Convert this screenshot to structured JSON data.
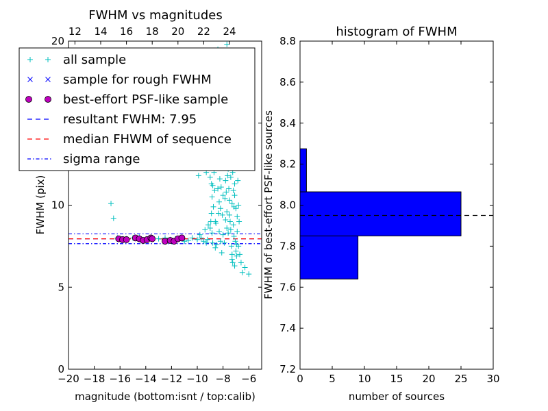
{
  "chart_data": [
    {
      "type": "scatter",
      "title": "FWHM vs magnitudes",
      "xlabel": "magnitude (bottom:isnt / top:calib)",
      "ylabel": "FWHM (pix)",
      "xlim": [
        -20,
        -5
      ],
      "ylim": [
        0,
        20
      ],
      "xticks": [
        -20,
        -18,
        -16,
        -14,
        -12,
        -10,
        -8,
        -6
      ],
      "xtick_labels": [
        "−20",
        "−18",
        "−16",
        "−14",
        "−12",
        "−10",
        "−8",
        "−6"
      ],
      "yticks": [
        0,
        5,
        10,
        15,
        20
      ],
      "ytick_labels": [
        "0",
        "5",
        "10",
        "15",
        "20"
      ],
      "top_axis": {
        "ticks": [
          12,
          14,
          16,
          18,
          20,
          22,
          24
        ],
        "tick_labels": [
          "12",
          "14",
          "16",
          "18",
          "20",
          "22",
          "24"
        ],
        "offset": 31.5
      },
      "legend_position": "top-left",
      "legend": [
        {
          "label": "all sample",
          "marker": "plus",
          "color": "#00BFBF"
        },
        {
          "label": "sample for rough FWHM",
          "marker": "x",
          "color": "#0000FF"
        },
        {
          "label": "best-effort PSF-like sample",
          "marker": "circle",
          "color": "#BF00BF"
        },
        {
          "label": "resultant FWHM: 7.95",
          "marker": "dash",
          "color": "#0000FF"
        },
        {
          "label": "median FHWM of sequence",
          "marker": "dash",
          "color": "#FF0000"
        },
        {
          "label": "sigma range",
          "marker": "dashdot",
          "color": "#0000FF"
        }
      ],
      "hlines": [
        {
          "y": 7.95,
          "color": "#0000FF",
          "style": "dash"
        },
        {
          "y": 7.95,
          "color": "#FF0000",
          "style": "dash"
        },
        {
          "y": 8.25,
          "color": "#0000FF",
          "style": "dashdot"
        },
        {
          "y": 7.65,
          "color": "#0000FF",
          "style": "dashdot"
        }
      ],
      "series": [
        {
          "name": "all sample",
          "marker": "plus",
          "color": "#00BFBF",
          "points": [
            [
              -16.7,
              10.1
            ],
            [
              -16.5,
              9.2
            ],
            [
              -16.2,
              8.0
            ],
            [
              -15.9,
              7.9
            ],
            [
              -15.5,
              7.95
            ],
            [
              -15.0,
              8.0
            ],
            [
              -14.5,
              8.05
            ],
            [
              -14.0,
              7.9
            ],
            [
              -13.5,
              8.0
            ],
            [
              -13.0,
              7.95
            ],
            [
              -12.5,
              8.0
            ],
            [
              -12.1,
              7.9
            ],
            [
              -11.7,
              7.95
            ],
            [
              -11.3,
              8.0
            ],
            [
              -11.0,
              7.8
            ],
            [
              -10.7,
              7.85
            ],
            [
              -10.4,
              8.0
            ],
            [
              -10.0,
              7.9
            ],
            [
              -9.8,
              8.2
            ],
            [
              -9.5,
              7.8
            ],
            [
              -9.2,
              7.9
            ],
            [
              -9.0,
              8.6
            ],
            [
              -8.9,
              9.5
            ],
            [
              -8.85,
              10.5
            ],
            [
              -8.8,
              11.2
            ],
            [
              -8.7,
              12.0
            ],
            [
              -8.6,
              12.7
            ],
            [
              -8.5,
              13.5
            ],
            [
              -8.4,
              11.0
            ],
            [
              -8.3,
              10.2
            ],
            [
              -8.2,
              9.8
            ],
            [
              -8.1,
              12.5
            ],
            [
              -8.0,
              15.0
            ],
            [
              -7.9,
              14.0
            ],
            [
              -7.85,
              12.8
            ],
            [
              -7.8,
              11.5
            ],
            [
              -7.75,
              10.8
            ],
            [
              -7.7,
              9.6
            ],
            [
              -7.65,
              13.5
            ],
            [
              -7.6,
              12.2
            ],
            [
              -7.55,
              11.0
            ],
            [
              -7.5,
              10.3
            ],
            [
              -7.45,
              9.0
            ],
            [
              -7.4,
              8.5
            ],
            [
              -7.35,
              7.5
            ],
            [
              -7.3,
              7.0
            ],
            [
              -7.25,
              6.5
            ],
            [
              -7.2,
              8.8
            ],
            [
              -7.15,
              9.9
            ],
            [
              -7.1,
              10.6
            ],
            [
              -7.05,
              7.8
            ],
            [
              -7.0,
              7.2
            ],
            [
              -6.95,
              6.9
            ],
            [
              -6.9,
              8.4
            ],
            [
              -6.8,
              7.5
            ],
            [
              -6.7,
              7.0
            ],
            [
              -6.6,
              6.5
            ],
            [
              -6.5,
              5.9
            ],
            [
              -6.3,
              6.2
            ],
            [
              -6.0,
              5.8
            ],
            [
              -8.7,
              14.5
            ],
            [
              -8.2,
              14.2
            ],
            [
              -7.95,
              16.5
            ],
            [
              -7.75,
              17.0
            ],
            [
              -7.55,
              17.5
            ],
            [
              -8.1,
              19.3
            ],
            [
              -7.7,
              19.8
            ],
            [
              -8.4,
              19.5
            ],
            [
              -9.9,
              11.8
            ],
            [
              -9.6,
              12.3
            ],
            [
              -9.3,
              12.0
            ],
            [
              -9.0,
              11.7
            ],
            [
              -8.9,
              11.3
            ],
            [
              -8.6,
              9.0
            ],
            [
              -8.3,
              8.4
            ],
            [
              -8.0,
              8.2
            ],
            [
              -9.4,
              8.5
            ],
            [
              -8.8,
              7.7
            ],
            [
              -8.5,
              7.6
            ],
            [
              -8.2,
              7.8
            ],
            [
              -7.9,
              7.7
            ],
            [
              -7.7,
              8.6
            ],
            [
              -7.5,
              9.4
            ],
            [
              -7.3,
              10.1
            ],
            [
              -7.1,
              11.3
            ],
            [
              -6.9,
              9.3
            ],
            [
              -6.8,
              10.0
            ],
            [
              -6.85,
              11.5
            ],
            [
              -6.75,
              9.0
            ],
            [
              -7.25,
              12.0
            ],
            [
              -7.45,
              12.6
            ],
            [
              -7.65,
              11.8
            ],
            [
              -7.85,
              10.4
            ],
            [
              -8.05,
              9.4
            ],
            [
              -8.25,
              11.6
            ],
            [
              -8.45,
              12.4
            ],
            [
              -8.65,
              10.9
            ],
            [
              -8.75,
              9.9
            ],
            [
              -8.95,
              9.0
            ],
            [
              -9.15,
              8.8
            ],
            [
              -7.0,
              9.8
            ],
            [
              -7.2,
              10.9
            ],
            [
              -7.4,
              11.7
            ],
            [
              -7.6,
              8.3
            ],
            [
              -7.8,
              9.1
            ],
            [
              -8.0,
              10.6
            ],
            [
              -8.15,
              11.1
            ],
            [
              -8.35,
              9.5
            ],
            [
              -8.55,
              8.9
            ],
            [
              -7.15,
              8.1
            ],
            [
              -6.95,
              7.6
            ],
            [
              -7.3,
              6.7
            ],
            [
              -7.1,
              6.3
            ],
            [
              -8.85,
              8.3
            ],
            [
              -9.7,
              8.0
            ],
            [
              -9.3,
              7.7
            ],
            [
              -8.6,
              7.4
            ],
            [
              -8.1,
              7.1
            ]
          ]
        },
        {
          "name": "best-effort PSF-like sample",
          "marker": "circle",
          "color": "#BF00BF",
          "points": [
            [
              -16.1,
              7.95
            ],
            [
              -15.8,
              7.9
            ],
            [
              -15.5,
              7.9
            ],
            [
              -14.8,
              8.0
            ],
            [
              -14.5,
              7.95
            ],
            [
              -14.2,
              7.85
            ],
            [
              -13.9,
              7.9
            ],
            [
              -13.6,
              8.0
            ],
            [
              -13.5,
              7.95
            ],
            [
              -12.5,
              7.8
            ],
            [
              -12.1,
              7.85
            ],
            [
              -11.8,
              7.8
            ],
            [
              -11.5,
              7.95
            ],
            [
              -11.2,
              8.0
            ]
          ]
        }
      ]
    },
    {
      "type": "bar",
      "title": "histogram of FWHM",
      "xlabel": "number of sources",
      "ylabel": "FWHM of best-effort PSF-like sources",
      "xlim": [
        0,
        30
      ],
      "ylim": [
        7.2,
        8.8
      ],
      "xticks": [
        0,
        5,
        10,
        15,
        20,
        25,
        30
      ],
      "xtick_labels": [
        "0",
        "5",
        "10",
        "15",
        "20",
        "25",
        "30"
      ],
      "yticks": [
        7.2,
        7.4,
        7.6,
        7.8,
        8.0,
        8.2,
        8.4,
        8.6,
        8.8
      ],
      "ytick_labels": [
        "7.2",
        "7.4",
        "7.6",
        "7.8",
        "8.0",
        "8.2",
        "8.4",
        "8.6",
        "8.8"
      ],
      "orientation": "horizontal",
      "bins": [
        {
          "y0": 7.64,
          "y1": 7.85,
          "count": 9
        },
        {
          "y0": 7.85,
          "y1": 8.065,
          "count": 25
        },
        {
          "y0": 8.065,
          "y1": 8.275,
          "count": 1
        }
      ],
      "bar_color": "#0000FF",
      "hline": {
        "y": 7.95,
        "color": "#000000",
        "style": "dash"
      }
    }
  ]
}
